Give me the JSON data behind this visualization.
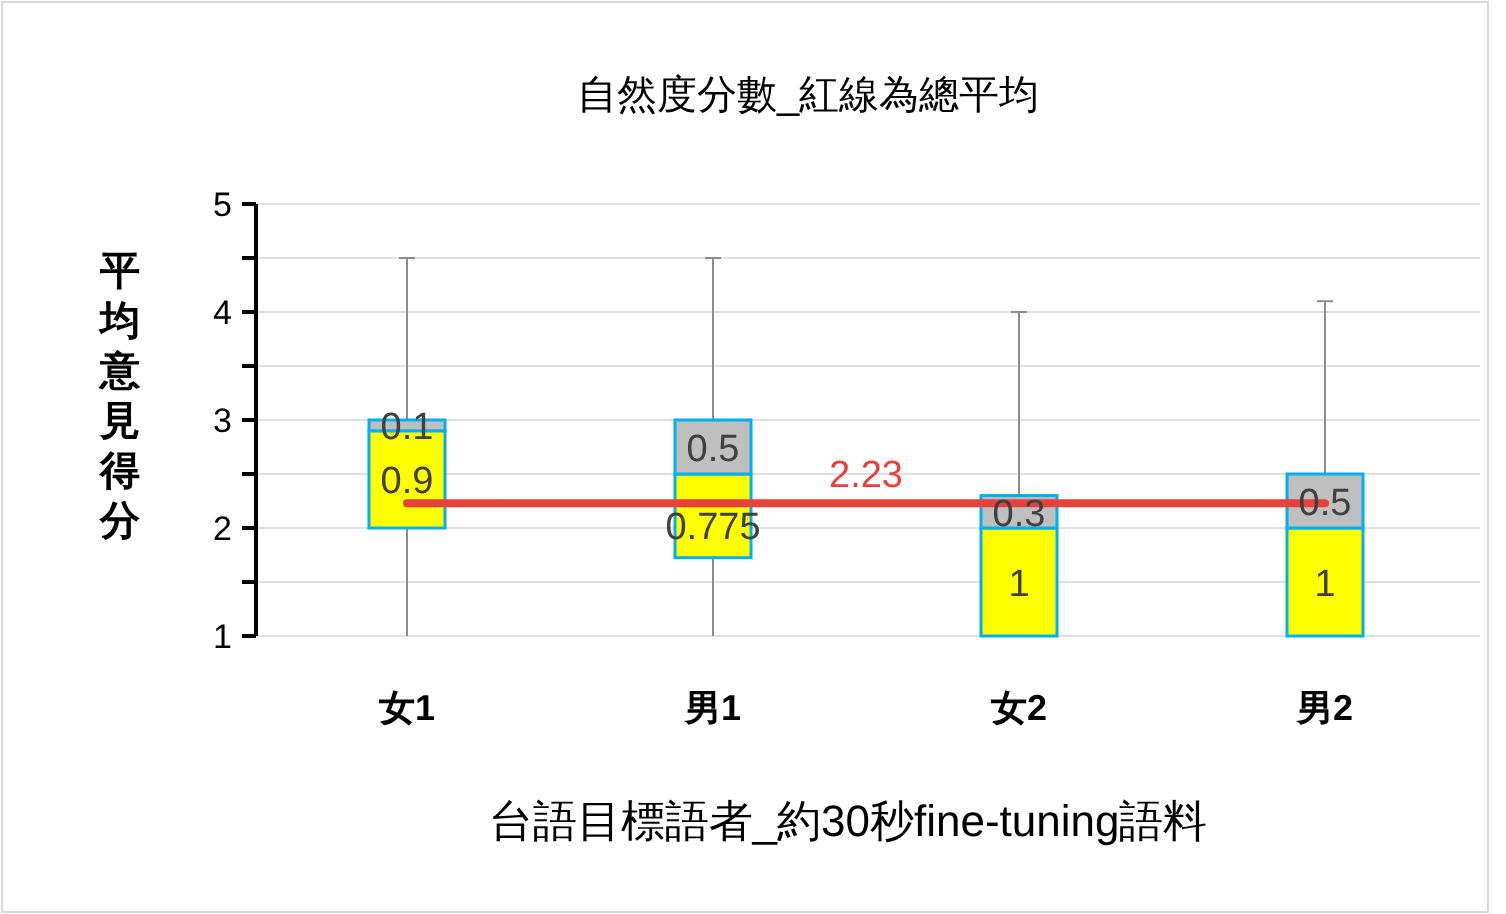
{
  "chart_data": {
    "type": "box",
    "title": "自然度分數_紅線為總平均",
    "xlabel": "台語目標語者_約30秒fine-tuning語料",
    "ylabel": "平均意見得分",
    "categories": [
      "女1",
      "男1",
      "女2",
      "男2"
    ],
    "colors": [
      "#ffff00",
      "#ffff00",
      "#ffff00",
      "#ffff00"
    ],
    "boxes": [
      {
        "low": 1,
        "q1": 2,
        "median": 2.9,
        "q3": 3,
        "high": 4.5
      },
      {
        "low": 1,
        "q1": 1.725,
        "median": 2.5,
        "q3": 3,
        "high": 4.5
      },
      {
        "low": 1,
        "q1": 1,
        "median": 2,
        "q3": 2.3,
        "high": 4
      },
      {
        "low": 1,
        "q1": 1,
        "median": 2,
        "q3": 2.5,
        "high": 4.1
      }
    ],
    "ylim": [
      1,
      5
    ],
    "yticks": [
      1,
      {
        "value": 1.5,
        "label": null
      },
      2,
      {
        "value": 2.5,
        "label": null
      },
      3,
      {
        "value": 3.5,
        "label": null
      },
      4,
      {
        "value": 4.5,
        "label": null
      },
      5
    ],
    "grid": "y",
    "ref_lines": [
      {
        "axis": "y",
        "value": 2.23,
        "label": "2.23",
        "color": "#e8403a"
      }
    ],
    "annotations": [
      "0.1",
      "0.9",
      "0.5",
      "0.775",
      "0.3",
      "1",
      "0.5",
      "1"
    ]
  }
}
